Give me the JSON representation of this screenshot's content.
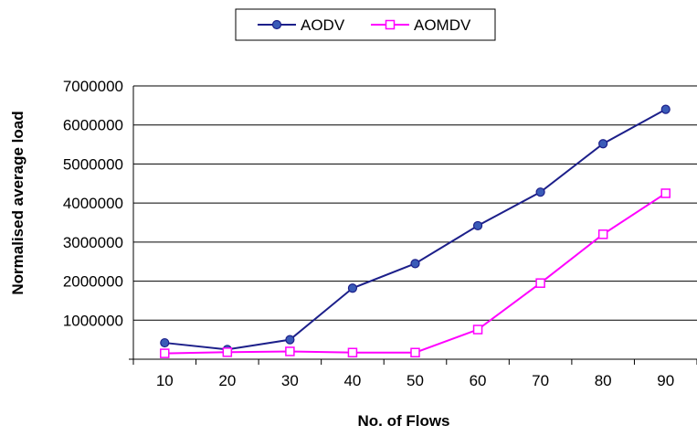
{
  "chart_data": {
    "type": "line",
    "title": "",
    "xlabel": "No. of Flows",
    "ylabel": "Normalised average load",
    "categories": [
      "10",
      "20",
      "30",
      "40",
      "50",
      "60",
      "70",
      "80",
      "90"
    ],
    "ylim": [
      0,
      7000000
    ],
    "yticks": [
      "1000000",
      "2000000",
      "3000000",
      "4000000",
      "5000000",
      "6000000",
      "7000000"
    ],
    "grid": true,
    "legend_position": "top-center",
    "series": [
      {
        "name": "AODV",
        "values": [
          420000,
          250000,
          500000,
          1820000,
          2450000,
          3420000,
          4280000,
          5520000,
          6400000
        ],
        "color": "#1c1f8a",
        "marker": "circle"
      },
      {
        "name": "AOMDV",
        "values": [
          150000,
          180000,
          200000,
          170000,
          170000,
          760000,
          1950000,
          3200000,
          4250000
        ],
        "color": "#ff00ff",
        "marker": "square"
      }
    ]
  }
}
